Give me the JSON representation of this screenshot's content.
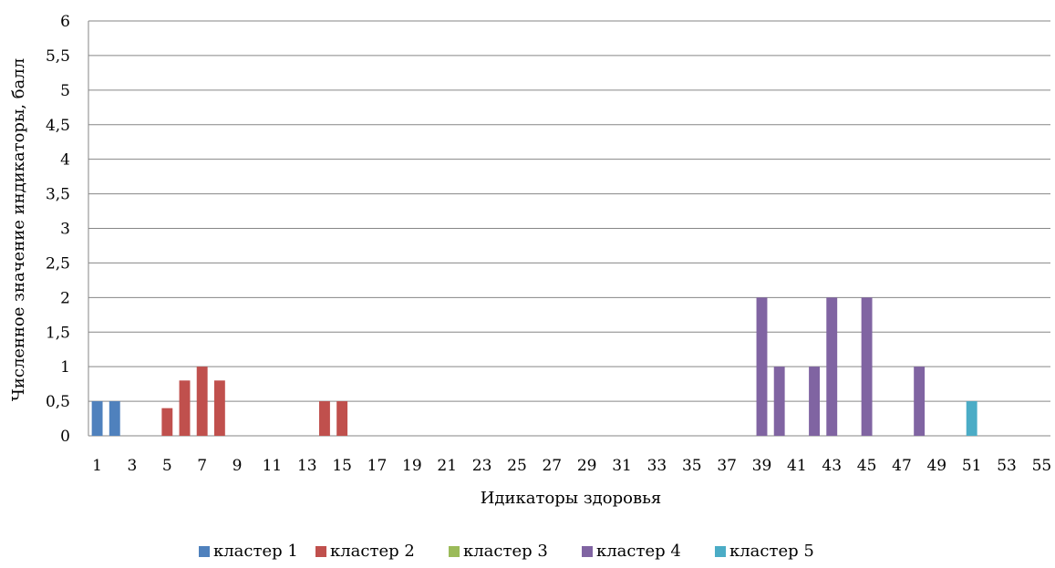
{
  "chart_data": {
    "type": "bar",
    "title": "",
    "xlabel": "Идикаторы здоровья",
    "ylabel": "Численное значение индикаторы, балл",
    "ylim": [
      0,
      6
    ],
    "y_ticks": [
      "0",
      "0,5",
      "1",
      "1,5",
      "2",
      "2,5",
      "3",
      "3,5",
      "4",
      "4,5",
      "5",
      "5,5",
      "6"
    ],
    "x_range": [
      1,
      55
    ],
    "x_tick_labels": [
      "1",
      "3",
      "5",
      "7",
      "9",
      "11",
      "13",
      "15",
      "17",
      "19",
      "21",
      "23",
      "25",
      "27",
      "29",
      "31",
      "33",
      "35",
      "37",
      "39",
      "41",
      "43",
      "45",
      "47",
      "49",
      "51",
      "53",
      "55"
    ],
    "grid": true,
    "legend_position": "bottom",
    "series": [
      {
        "name": "кластер 1",
        "color": "#4F81BD",
        "points": [
          {
            "x": 1,
            "y": 0.5
          },
          {
            "x": 2,
            "y": 0.5
          }
        ]
      },
      {
        "name": "кластер 2",
        "color": "#C0504D",
        "points": [
          {
            "x": 5,
            "y": 0.4
          },
          {
            "x": 6,
            "y": 0.8
          },
          {
            "x": 7,
            "y": 1
          },
          {
            "x": 8,
            "y": 0.8
          },
          {
            "x": 14,
            "y": 0.5
          },
          {
            "x": 15,
            "y": 0.5
          }
        ]
      },
      {
        "name": "кластер 3",
        "color": "#9BBB59",
        "points": []
      },
      {
        "name": "кластер 4",
        "color": "#8064A2",
        "points": [
          {
            "x": 39,
            "y": 2
          },
          {
            "x": 40,
            "y": 1
          },
          {
            "x": 42,
            "y": 1
          },
          {
            "x": 43,
            "y": 2
          },
          {
            "x": 45,
            "y": 2
          },
          {
            "x": 48,
            "y": 1
          }
        ]
      },
      {
        "name": "кластер 5",
        "color": "#4BACC6",
        "points": [
          {
            "x": 51,
            "y": 0.5
          }
        ]
      }
    ]
  }
}
